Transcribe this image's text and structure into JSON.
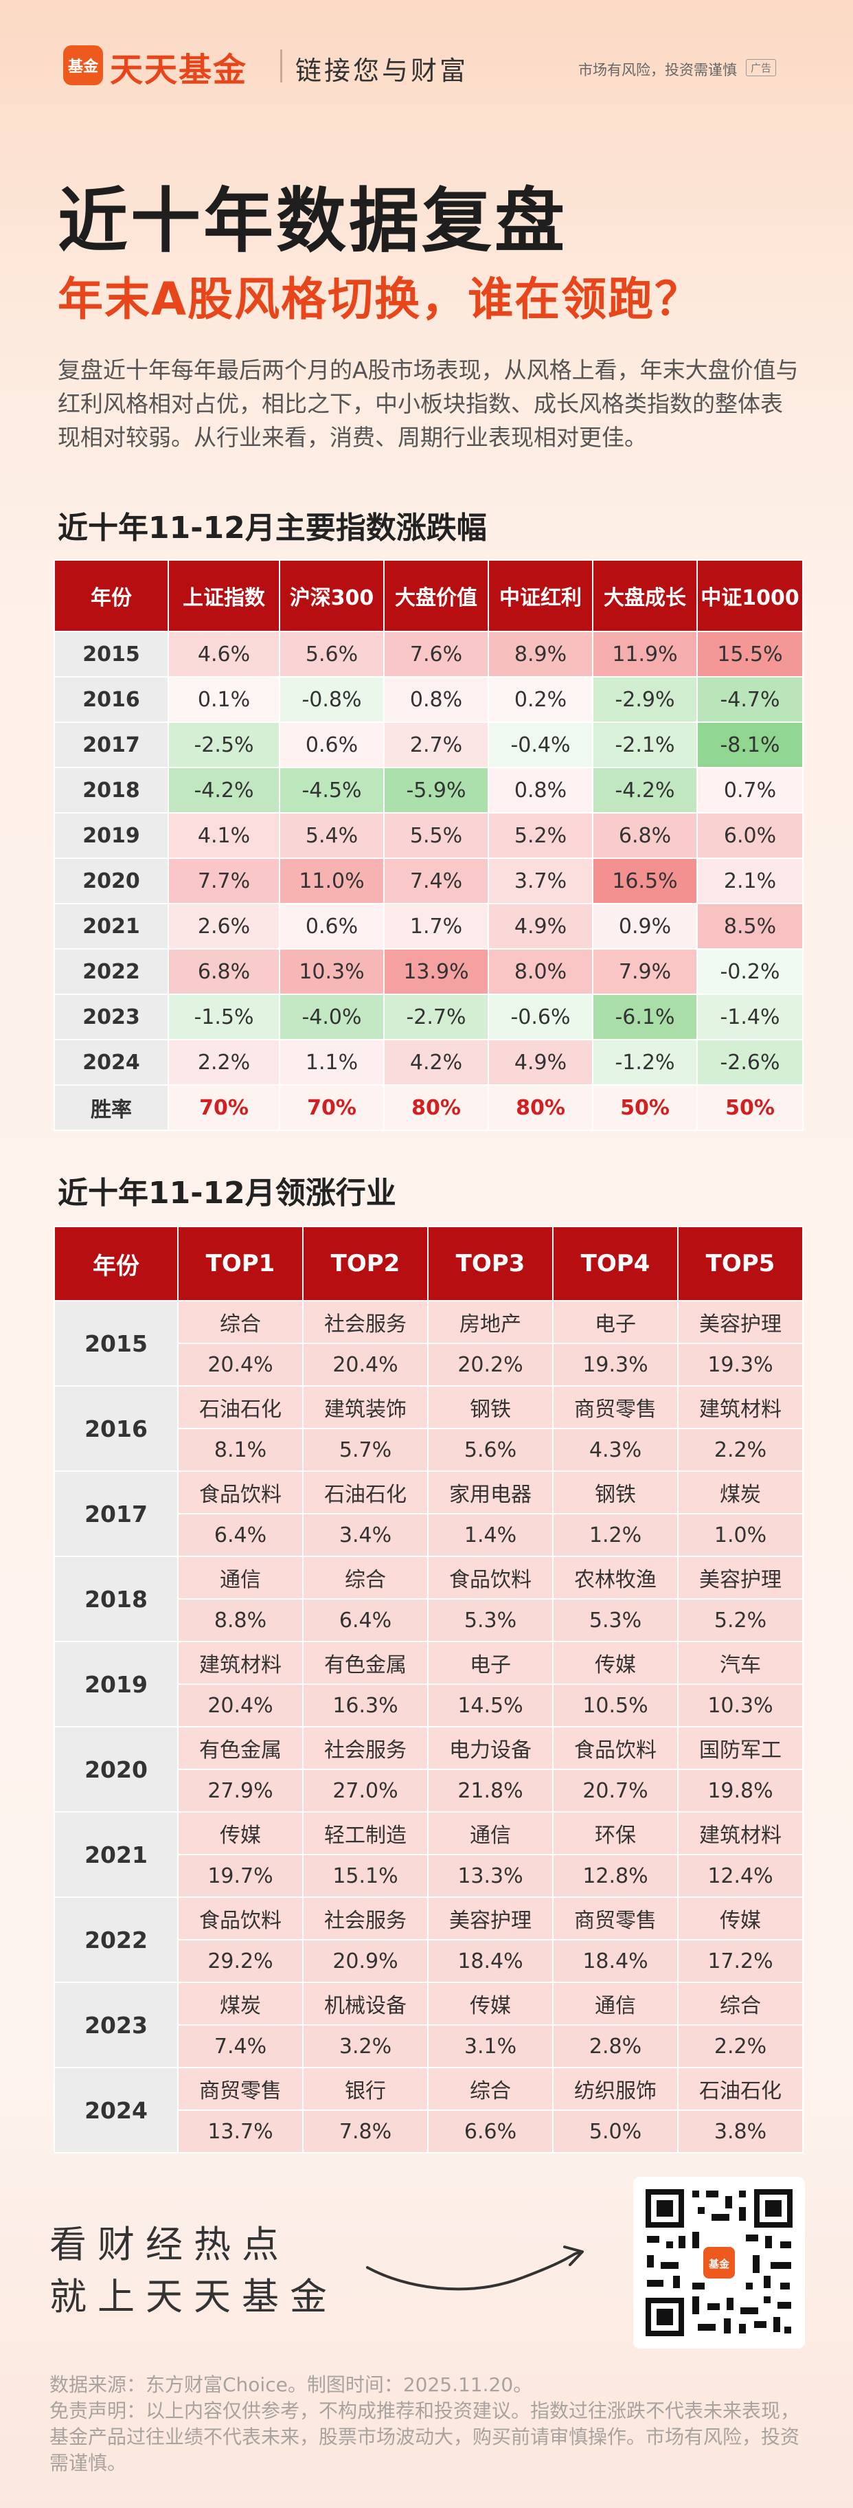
{
  "header": {
    "logo_mark": "基金",
    "logo_text": "天天基金",
    "slogan": "链接您与财富",
    "risk_notice": "市场有风险，投资需谨慎",
    "ad_badge": "广告"
  },
  "title": {
    "line1": "近十年数据复盘",
    "line2": "年末A股风格切换，谁在领跑？"
  },
  "intro": "复盘近十年每年最后两个月的A股市场表现，从风格上看，年末大盘价值与红利风格相对占优，相比之下，中小板块指数、成长风格类指数的整体表现相对较弱。从行业来看，消费、周期行业表现相对更佳。",
  "section1": {
    "title": "近十年11-12月主要指数涨跌幅",
    "headers": [
      "年份",
      "上证指数",
      "沪深300",
      "大盘价值",
      "中证红利",
      "大盘成长",
      "中证1000"
    ],
    "rows": [
      {
        "year": "2015",
        "values": [
          "4.6%",
          "5.6%",
          "7.6%",
          "8.9%",
          "11.9%",
          "15.5%"
        ]
      },
      {
        "year": "2016",
        "values": [
          "0.1%",
          "-0.8%",
          "0.8%",
          "0.2%",
          "-2.9%",
          "-4.7%"
        ]
      },
      {
        "year": "2017",
        "values": [
          "-2.5%",
          "0.6%",
          "2.7%",
          "-0.4%",
          "-2.1%",
          "-8.1%"
        ]
      },
      {
        "year": "2018",
        "values": [
          "-4.2%",
          "-4.5%",
          "-5.9%",
          "0.8%",
          "-4.2%",
          "0.7%"
        ]
      },
      {
        "year": "2019",
        "values": [
          "4.1%",
          "5.4%",
          "5.5%",
          "5.2%",
          "6.8%",
          "6.0%"
        ]
      },
      {
        "year": "2020",
        "values": [
          "7.7%",
          "11.0%",
          "7.4%",
          "3.7%",
          "16.5%",
          "2.1%"
        ]
      },
      {
        "year": "2021",
        "values": [
          "2.6%",
          "0.6%",
          "1.7%",
          "4.9%",
          "0.9%",
          "8.5%"
        ]
      },
      {
        "year": "2022",
        "values": [
          "6.8%",
          "10.3%",
          "13.9%",
          "8.0%",
          "7.9%",
          "-0.2%"
        ]
      },
      {
        "year": "2023",
        "values": [
          "-1.5%",
          "-4.0%",
          "-2.7%",
          "-0.6%",
          "-6.1%",
          "-1.4%"
        ]
      },
      {
        "year": "2024",
        "values": [
          "2.2%",
          "1.1%",
          "4.2%",
          "4.9%",
          "-1.2%",
          "-2.6%"
        ]
      }
    ],
    "win_rate_label": "胜率",
    "win_rates": [
      "70%",
      "70%",
      "80%",
      "80%",
      "50%",
      "50%"
    ]
  },
  "section2": {
    "title": "近十年11-12月领涨行业",
    "headers": [
      "年份",
      "TOP1",
      "TOP2",
      "TOP3",
      "TOP4",
      "TOP5"
    ],
    "rows": [
      {
        "year": "2015",
        "industries": [
          "综合",
          "社会服务",
          "房地产",
          "电子",
          "美容护理"
        ],
        "values": [
          "20.4%",
          "20.4%",
          "20.2%",
          "19.3%",
          "19.3%"
        ]
      },
      {
        "year": "2016",
        "industries": [
          "石油石化",
          "建筑装饰",
          "钢铁",
          "商贸零售",
          "建筑材料"
        ],
        "values": [
          "8.1%",
          "5.7%",
          "5.6%",
          "4.3%",
          "2.2%"
        ]
      },
      {
        "year": "2017",
        "industries": [
          "食品饮料",
          "石油石化",
          "家用电器",
          "钢铁",
          "煤炭"
        ],
        "values": [
          "6.4%",
          "3.4%",
          "1.4%",
          "1.2%",
          "1.0%"
        ]
      },
      {
        "year": "2018",
        "industries": [
          "通信",
          "综合",
          "食品饮料",
          "农林牧渔",
          "美容护理"
        ],
        "values": [
          "8.8%",
          "6.4%",
          "5.3%",
          "5.3%",
          "5.2%"
        ]
      },
      {
        "year": "2019",
        "industries": [
          "建筑材料",
          "有色金属",
          "电子",
          "传媒",
          "汽车"
        ],
        "values": [
          "20.4%",
          "16.3%",
          "14.5%",
          "10.5%",
          "10.3%"
        ]
      },
      {
        "year": "2020",
        "industries": [
          "有色金属",
          "社会服务",
          "电力设备",
          "食品饮料",
          "国防军工"
        ],
        "values": [
          "27.9%",
          "27.0%",
          "21.8%",
          "20.7%",
          "19.8%"
        ]
      },
      {
        "year": "2021",
        "industries": [
          "传媒",
          "轻工制造",
          "通信",
          "环保",
          "建筑材料"
        ],
        "values": [
          "19.7%",
          "15.1%",
          "13.3%",
          "12.8%",
          "12.4%"
        ]
      },
      {
        "year": "2022",
        "industries": [
          "食品饮料",
          "社会服务",
          "美容护理",
          "商贸零售",
          "传媒"
        ],
        "values": [
          "29.2%",
          "20.9%",
          "18.4%",
          "18.4%",
          "17.2%"
        ]
      },
      {
        "year": "2023",
        "industries": [
          "煤炭",
          "机械设备",
          "传媒",
          "通信",
          "综合"
        ],
        "values": [
          "7.4%",
          "3.2%",
          "3.1%",
          "2.8%",
          "2.2%"
        ]
      },
      {
        "year": "2024",
        "industries": [
          "商贸零售",
          "银行",
          "综合",
          "纺织服饰",
          "石油石化"
        ],
        "values": [
          "13.7%",
          "7.8%",
          "6.6%",
          "5.0%",
          "3.8%"
        ]
      }
    ]
  },
  "footer": {
    "slogan_line1": "看财经热点",
    "slogan_line2": "就上天天基金",
    "qr_center": "基金",
    "data_source": "数据来源：东方财富Choice。制图时间：2025.11.20。",
    "disclaimer": "免责声明：以上内容仅供参考，不构成推荐和投资建议。指数过往涨跌不代表未来表现，基金产品过往业绩不代表未来，股票市场波动大，购买前请审慎操作。市场有风险，投资需谨慎。"
  },
  "colors": {
    "brand_orange": "#e8461a",
    "header_red": "#b70e12",
    "win_red": "#d21f22",
    "positive_base": "#f08a8a",
    "negative_base": "#6cc06c"
  }
}
